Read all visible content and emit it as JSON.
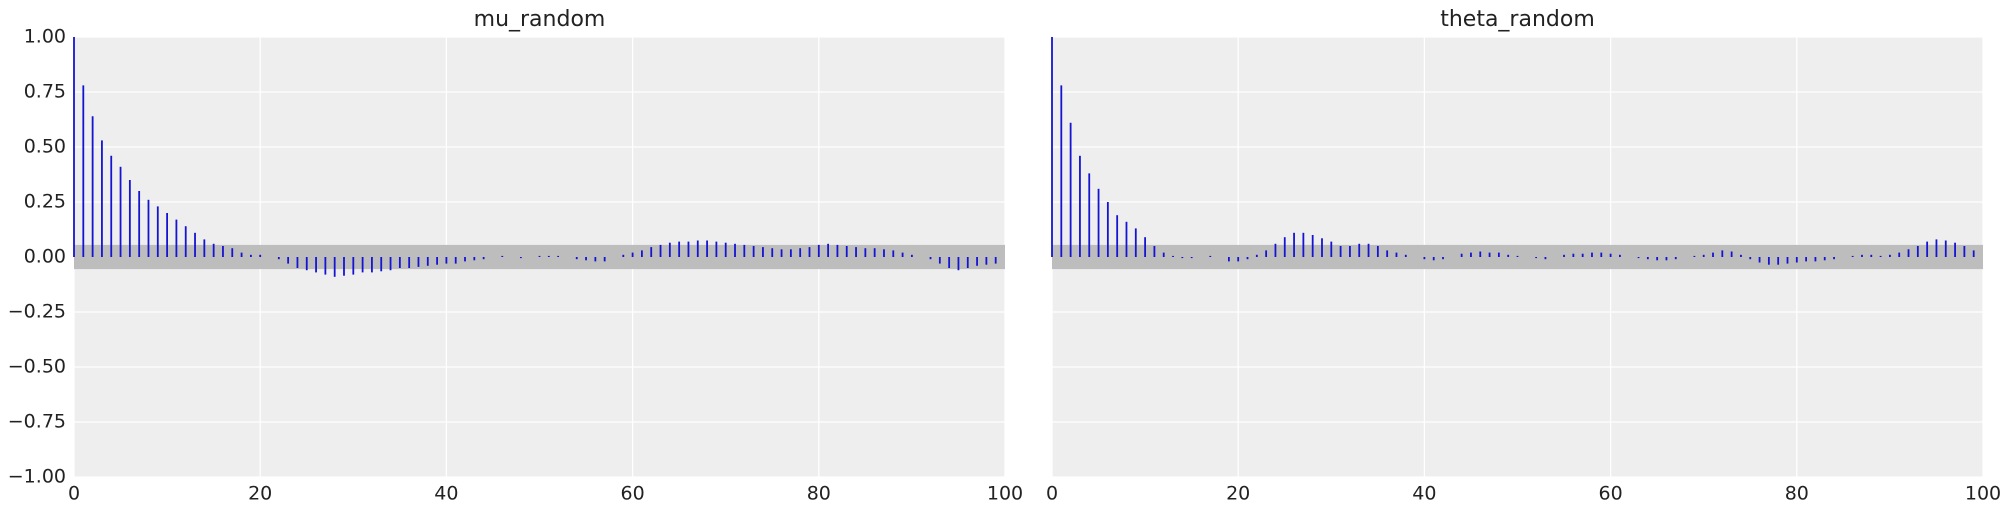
{
  "chart_data": [
    {
      "type": "stem",
      "title": "mu_random",
      "color": "#1414d2",
      "grid": true,
      "ytick_labels": true,
      "confidence_band": [
        -0.055,
        0.055
      ],
      "xlim": [
        0,
        100
      ],
      "xticks": [
        0,
        20,
        40,
        60,
        80,
        100
      ],
      "ylim": [
        -1,
        1
      ],
      "yticks": [
        {
          "value": -1,
          "label": "−1.00"
        },
        {
          "value": -0.75,
          "label": "−0.75"
        },
        {
          "value": -0.5,
          "label": "−0.50"
        },
        {
          "value": -0.25,
          "label": "−0.25"
        },
        {
          "value": 0,
          "label": "0.00"
        },
        {
          "value": 0.25,
          "label": "0.25"
        },
        {
          "value": 0.5,
          "label": "0.50"
        },
        {
          "value": 0.75,
          "label": "0.75"
        },
        {
          "value": 1,
          "label": "1.00"
        }
      ],
      "x": [
        0,
        1,
        2,
        3,
        4,
        5,
        6,
        7,
        8,
        9,
        10,
        11,
        12,
        13,
        14,
        15,
        16,
        17,
        18,
        19,
        20,
        21,
        22,
        23,
        24,
        25,
        26,
        27,
        28,
        29,
        30,
        31,
        32,
        33,
        34,
        35,
        36,
        37,
        38,
        39,
        40,
        41,
        42,
        43,
        44,
        45,
        46,
        47,
        48,
        49,
        50,
        51,
        52,
        53,
        54,
        55,
        56,
        57,
        58,
        59,
        60,
        61,
        62,
        63,
        64,
        65,
        66,
        67,
        68,
        69,
        70,
        71,
        72,
        73,
        74,
        75,
        76,
        77,
        78,
        79,
        80,
        81,
        82,
        83,
        84,
        85,
        86,
        87,
        88,
        89,
        90,
        91,
        92,
        93,
        94,
        95,
        96,
        97,
        98,
        99
      ],
      "values": [
        1.0,
        0.78,
        0.64,
        0.53,
        0.46,
        0.41,
        0.35,
        0.3,
        0.26,
        0.23,
        0.2,
        0.17,
        0.14,
        0.11,
        0.08,
        0.06,
        0.05,
        0.04,
        0.02,
        0.01,
        0.01,
        0.0,
        -0.01,
        -0.03,
        -0.05,
        -0.06,
        -0.07,
        -0.08,
        -0.09,
        -0.085,
        -0.08,
        -0.07,
        -0.07,
        -0.065,
        -0.06,
        -0.05,
        -0.05,
        -0.045,
        -0.04,
        -0.035,
        -0.03,
        -0.03,
        -0.02,
        -0.015,
        -0.01,
        0.0,
        0.005,
        0.0,
        -0.005,
        0.0,
        0.005,
        0.005,
        0.005,
        0.0,
        -0.01,
        -0.015,
        -0.02,
        -0.02,
        0.0,
        0.01,
        0.02,
        0.03,
        0.045,
        0.055,
        0.065,
        0.07,
        0.07,
        0.075,
        0.075,
        0.07,
        0.065,
        0.06,
        0.055,
        0.05,
        0.045,
        0.04,
        0.035,
        0.035,
        0.04,
        0.045,
        0.055,
        0.06,
        0.055,
        0.05,
        0.045,
        0.04,
        0.04,
        0.035,
        0.03,
        0.02,
        0.01,
        0.0,
        -0.01,
        -0.03,
        -0.05,
        -0.06,
        -0.05,
        -0.04,
        -0.035,
        -0.03
      ]
    },
    {
      "type": "stem",
      "title": "theta_random",
      "color": "#1414d2",
      "grid": true,
      "ytick_labels": false,
      "confidence_band": [
        -0.055,
        0.055
      ],
      "xlim": [
        0,
        100
      ],
      "xticks": [
        0,
        20,
        40,
        60,
        80,
        100
      ],
      "ylim": [
        -1,
        1
      ],
      "yticks": [
        -1,
        -0.75,
        -0.5,
        -0.25,
        0,
        0.25,
        0.5,
        0.75,
        1
      ],
      "x": [
        0,
        1,
        2,
        3,
        4,
        5,
        6,
        7,
        8,
        9,
        10,
        11,
        12,
        13,
        14,
        15,
        16,
        17,
        18,
        19,
        20,
        21,
        22,
        23,
        24,
        25,
        26,
        27,
        28,
        29,
        30,
        31,
        32,
        33,
        34,
        35,
        36,
        37,
        38,
        39,
        40,
        41,
        42,
        43,
        44,
        45,
        46,
        47,
        48,
        49,
        50,
        51,
        52,
        53,
        54,
        55,
        56,
        57,
        58,
        59,
        60,
        61,
        62,
        63,
        64,
        65,
        66,
        67,
        68,
        69,
        70,
        71,
        72,
        73,
        74,
        75,
        76,
        77,
        78,
        79,
        80,
        81,
        82,
        83,
        84,
        85,
        86,
        87,
        88,
        89,
        90,
        91,
        92,
        93,
        94,
        95,
        96,
        97,
        98,
        99
      ],
      "values": [
        1.0,
        0.78,
        0.61,
        0.46,
        0.38,
        0.31,
        0.25,
        0.19,
        0.16,
        0.13,
        0.09,
        0.05,
        0.02,
        0.005,
        -0.005,
        -0.005,
        0.0,
        0.005,
        0.0,
        -0.02,
        -0.02,
        -0.01,
        0.01,
        0.03,
        0.06,
        0.09,
        0.11,
        0.11,
        0.1,
        0.085,
        0.07,
        0.05,
        0.05,
        0.06,
        0.06,
        0.05,
        0.03,
        0.02,
        0.01,
        0.0,
        -0.01,
        -0.015,
        -0.01,
        0.0,
        0.015,
        0.02,
        0.025,
        0.02,
        0.02,
        0.01,
        0.005,
        0.0,
        -0.005,
        -0.01,
        0.0,
        0.01,
        0.015,
        0.015,
        0.02,
        0.02,
        0.015,
        0.01,
        0.0,
        -0.005,
        -0.01,
        -0.015,
        -0.015,
        -0.01,
        0.0,
        0.005,
        0.01,
        0.02,
        0.03,
        0.025,
        0.01,
        -0.01,
        -0.025,
        -0.035,
        -0.035,
        -0.03,
        -0.025,
        -0.02,
        -0.02,
        -0.015,
        -0.01,
        0.0,
        0.005,
        0.01,
        0.01,
        0.005,
        0.01,
        0.02,
        0.035,
        0.05,
        0.07,
        0.08,
        0.075,
        0.065,
        0.05,
        0.03
      ]
    }
  ]
}
